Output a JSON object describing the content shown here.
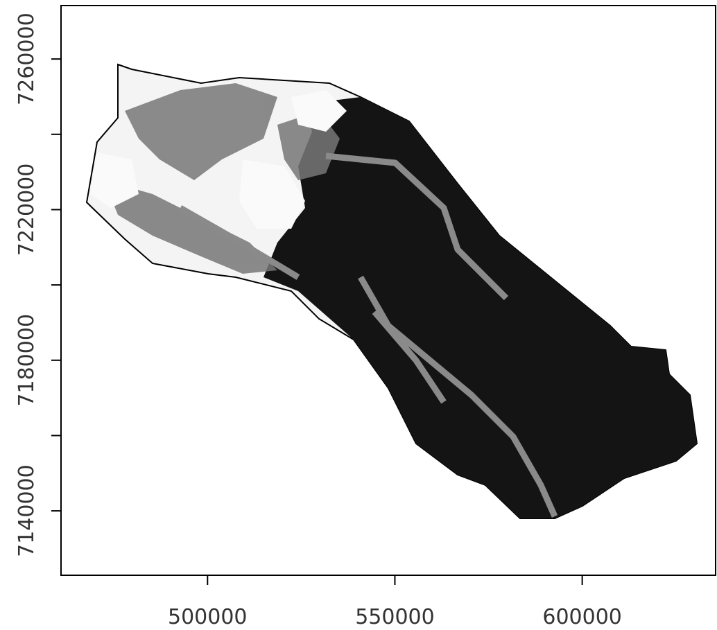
{
  "chart_data": {
    "type": "raster",
    "xlim": [
      460900,
      635600
    ],
    "ylim": [
      7122900,
      7274200
    ],
    "xticks": [
      500000,
      550000,
      600000
    ],
    "yticks": [
      7140000,
      {
        "value": 7160000,
        "label": null
      },
      7180000,
      {
        "value": 7200000,
        "label": null
      },
      7220000,
      {
        "value": 7240000,
        "label": null
      },
      7260000
    ]
  }
}
